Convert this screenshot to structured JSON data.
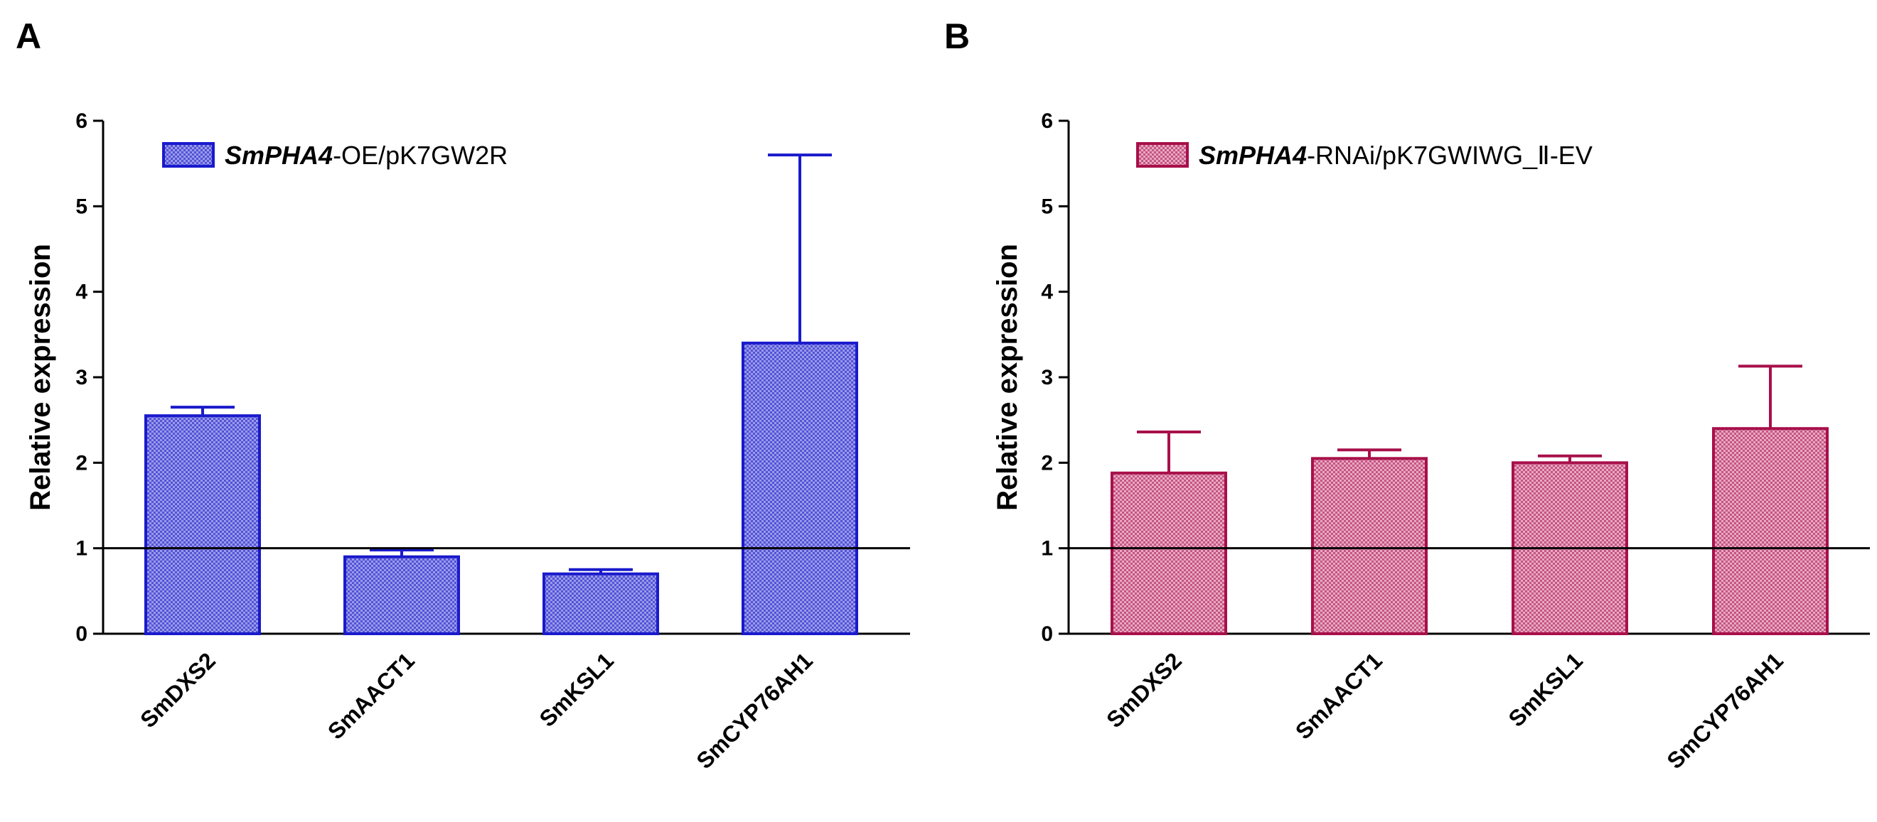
{
  "chart_data": [
    {
      "panel": "A",
      "type": "bar",
      "legend": {
        "italic": "SmPHA4",
        "rest": "-OE/pK7GW2R"
      },
      "color": "#1a1acc",
      "fill_dot": "#9a9ae8",
      "ylabel": "Relative expression",
      "ylim": [
        0,
        6
      ],
      "yticks": [
        "0",
        "1",
        "2",
        "3",
        "4",
        "5",
        "6"
      ],
      "reference_line": 1,
      "categories": [
        "SmDXS2",
        "SmAACT1",
        "SmKSL1",
        "SmCYP76AH1"
      ],
      "values": [
        2.55,
        0.9,
        0.7,
        3.4
      ],
      "errors": [
        0.1,
        0.08,
        0.05,
        2.2
      ]
    },
    {
      "panel": "B",
      "type": "bar",
      "legend": {
        "italic": "SmPHA4",
        "rest": "-RNAi/pK7GWIWG_Ⅱ-EV"
      },
      "color": "#a8104a",
      "fill_dot": "#e8a8c4",
      "ylabel": "Relative expression",
      "ylim": [
        0,
        6
      ],
      "yticks": [
        "0",
        "1",
        "2",
        "3",
        "4",
        "5",
        "6"
      ],
      "reference_line": 1,
      "categories": [
        "SmDXS2",
        "SmAACT1",
        "SmKSL1",
        "SmCYP76AH1"
      ],
      "values": [
        1.88,
        2.05,
        2.0,
        2.4
      ],
      "errors": [
        0.48,
        0.1,
        0.08,
        0.73
      ]
    }
  ]
}
